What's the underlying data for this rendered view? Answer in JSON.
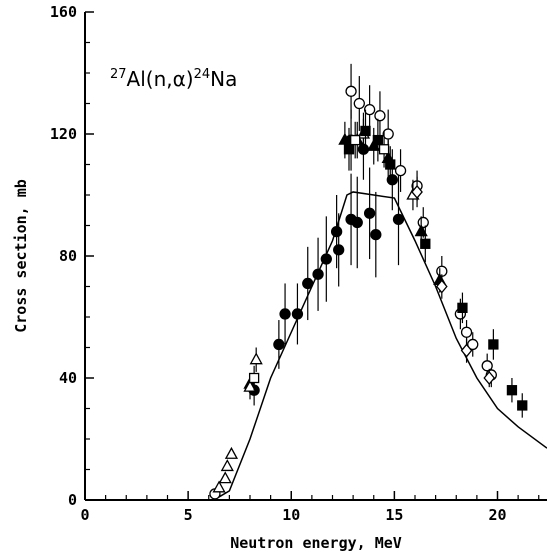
{
  "chart_data": {
    "type": "scatter",
    "annotation": {
      "pre_sup": "27",
      "main": "Al(n,α)",
      "mid_sup": "24",
      "end": "Na"
    },
    "x_label": "Neutron energy, MeV",
    "y_label": "Cross section, mb",
    "xlim": [
      0,
      22.4
    ],
    "ylim": [
      0,
      160
    ],
    "xticks": [
      0,
      5,
      10,
      15,
      20
    ],
    "yticks": [
      0,
      40,
      80,
      120,
      160
    ],
    "xminorticks": [
      1,
      2,
      3,
      4,
      6,
      7,
      8,
      9,
      11,
      12,
      13,
      14,
      16,
      17,
      18,
      19,
      21,
      22
    ],
    "yminorticks": [
      10,
      20,
      30,
      50,
      60,
      70,
      90,
      100,
      110,
      130,
      140,
      150
    ],
    "series": [
      {
        "style": "line",
        "color": "#000000",
        "x": [
          6.2,
          6.5,
          7,
          8,
          9,
          10,
          11,
          12,
          12.7,
          13,
          14,
          15,
          16,
          17,
          18,
          19,
          20,
          21,
          22,
          22.4
        ],
        "values": [
          0,
          1,
          3,
          20,
          40,
          55,
          70,
          85,
          100,
          101,
          100,
          99,
          85,
          70,
          53,
          40,
          30,
          24,
          19,
          17
        ]
      },
      {
        "style": "marker",
        "marker": "circle",
        "filled": true,
        "color": "#000000",
        "x": [
          8.2,
          9.4,
          9.7,
          10.3,
          10.8,
          11.3,
          11.7,
          12.2,
          12.3,
          12.9,
          13.2,
          13.8,
          14.1,
          15.2,
          14.9,
          13.5,
          12.9
        ],
        "values": [
          36,
          51,
          61,
          61,
          71,
          74,
          79,
          88,
          82,
          92,
          91,
          94,
          87,
          92,
          105,
          115,
          118
        ],
        "errors": [
          5,
          8,
          10,
          10,
          12,
          12,
          14,
          12,
          12,
          15,
          15,
          15,
          14,
          15,
          10,
          10,
          10
        ]
      },
      {
        "style": "marker",
        "marker": "circle",
        "filled": false,
        "color": "#000000",
        "x": [
          6.3,
          12.9,
          13.3,
          13.8,
          14.3,
          14.7,
          15.3,
          16.1,
          16.4,
          17.3,
          18.2,
          18.5,
          18.8,
          19.5,
          19.7
        ],
        "values": [
          2,
          134,
          130,
          128,
          126,
          120,
          108,
          103,
          91,
          75,
          61,
          55,
          51,
          44,
          41
        ],
        "errors": [
          1,
          9,
          9,
          8,
          8,
          8,
          7,
          5,
          5,
          5,
          5,
          4,
          4,
          4,
          4
        ]
      },
      {
        "style": "marker",
        "marker": "triangle",
        "filled": true,
        "color": "#000000",
        "x": [
          8.0,
          12.6,
          13.2,
          14.0,
          14.7,
          16.3,
          17.2
        ],
        "values": [
          38,
          118,
          118,
          116,
          112,
          88,
          72
        ],
        "errors": [
          3,
          6,
          6,
          6,
          6,
          5,
          4
        ]
      },
      {
        "style": "marker",
        "marker": "triangle",
        "filled": false,
        "color": "#000000",
        "x": [
          6.5,
          6.8,
          6.9,
          7.1,
          8.0,
          8.3,
          13.5,
          15.9
        ],
        "values": [
          4,
          7,
          11,
          15,
          37,
          46,
          120,
          100
        ],
        "errors": [
          1,
          1,
          1,
          1,
          4,
          4,
          7,
          5
        ]
      },
      {
        "style": "marker",
        "marker": "square",
        "filled": true,
        "color": "#000000",
        "x": [
          12.8,
          13.6,
          14.2,
          14.8,
          16.5,
          18.3,
          19.8,
          20.7,
          21.2
        ],
        "values": [
          115,
          121,
          118,
          110,
          84,
          63,
          51,
          36,
          31
        ],
        "errors": [
          7,
          7,
          7,
          6,
          6,
          5,
          5,
          4,
          4
        ]
      },
      {
        "style": "marker",
        "marker": "square",
        "filled": false,
        "color": "#000000",
        "x": [
          8.2,
          13.1,
          14.5
        ],
        "values": [
          40,
          118,
          115
        ],
        "errors": [
          4,
          6,
          6
        ]
      },
      {
        "style": "marker",
        "marker": "diamond",
        "filled": false,
        "color": "#000000",
        "x": [
          16.1,
          17.3,
          18.5,
          19.6
        ],
        "values": [
          101,
          70,
          49,
          40
        ],
        "errors": [
          5,
          4,
          4,
          3
        ]
      }
    ]
  }
}
